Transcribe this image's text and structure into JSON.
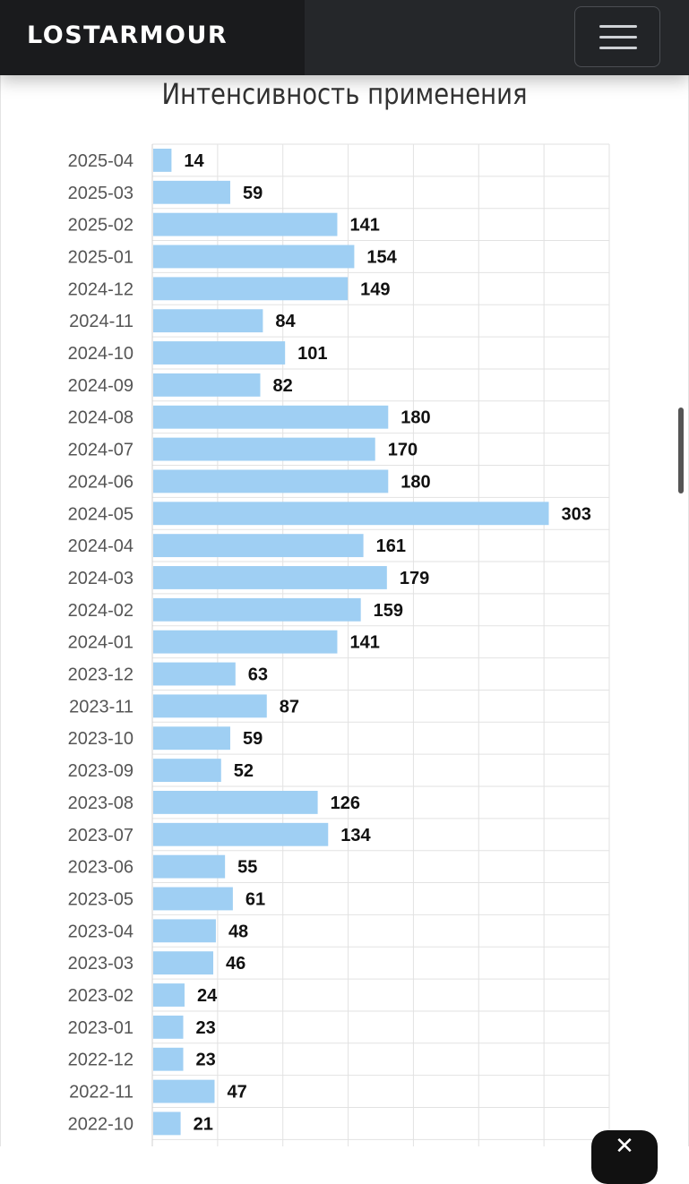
{
  "header": {
    "brand": "LOSTARMOUR",
    "menu_icon": "hamburger-icon"
  },
  "close_icon": "close-icon",
  "chart_data": {
    "type": "bar",
    "orientation": "horizontal",
    "title": "Интенсивность применения",
    "xlabel": "",
    "ylabel": "",
    "xlim": [
      0,
      350
    ],
    "grid": true,
    "legend": "none",
    "bar_color": "#9fcff3",
    "categories": [
      "2025-04",
      "2025-03",
      "2025-02",
      "2025-01",
      "2024-12",
      "2024-11",
      "2024-10",
      "2024-09",
      "2024-08",
      "2024-07",
      "2024-06",
      "2024-05",
      "2024-04",
      "2024-03",
      "2024-02",
      "2024-01",
      "2023-12",
      "2023-11",
      "2023-10",
      "2023-09",
      "2023-08",
      "2023-07",
      "2023-06",
      "2023-05",
      "2023-04",
      "2023-03",
      "2023-02",
      "2023-01",
      "2022-12",
      "2022-11",
      "2022-10"
    ],
    "values": [
      14,
      59,
      141,
      154,
      149,
      84,
      101,
      82,
      180,
      170,
      180,
      303,
      161,
      179,
      159,
      141,
      63,
      87,
      59,
      52,
      126,
      134,
      55,
      61,
      48,
      46,
      24,
      23,
      23,
      47,
      21
    ]
  }
}
